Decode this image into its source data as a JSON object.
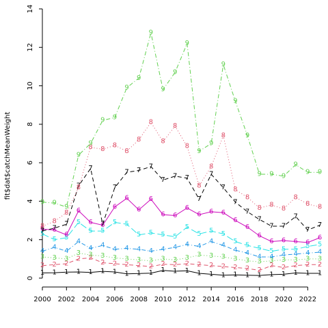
{
  "chart_data": {
    "type": "line",
    "title": "",
    "xlabel": "",
    "ylabel": "fit$dat$catchMeanWeight",
    "xlim": [
      2000,
      2023
    ],
    "ylim": [
      0,
      14
    ],
    "x_ticks": [
      2000,
      2002,
      2004,
      2006,
      2008,
      2010,
      2012,
      2014,
      2016,
      2018,
      2020,
      2022
    ],
    "y_ticks": [
      0,
      2,
      4,
      6,
      8,
      10,
      12,
      14
    ],
    "x": [
      2000,
      2001,
      2002,
      2003,
      2004,
      2005,
      2006,
      2007,
      2008,
      2009,
      2010,
      2011,
      2012,
      2013,
      2014,
      2015,
      2016,
      2017,
      2018,
      2019,
      2020,
      2021,
      2022,
      2023
    ],
    "grid": false,
    "legend": "none",
    "series": [
      {
        "label": "1",
        "color": "#000000",
        "dash": "solid",
        "values": [
          0.27,
          0.28,
          0.31,
          0.32,
          0.3,
          0.35,
          0.32,
          0.22,
          0.24,
          0.26,
          0.4,
          0.36,
          0.38,
          0.25,
          0.2,
          0.15,
          0.17,
          0.15,
          0.14,
          0.18,
          0.2,
          0.27,
          0.25,
          0.25
        ]
      },
      {
        "label": "2",
        "color": "#df536b",
        "dash": "6,4",
        "values": [
          0.65,
          0.7,
          0.75,
          1.0,
          1.05,
          0.8,
          0.75,
          0.7,
          0.65,
          0.6,
          0.72,
          0.7,
          0.75,
          0.7,
          0.65,
          0.6,
          0.55,
          0.5,
          0.4,
          0.65,
          0.55,
          0.65,
          0.7,
          0.7
        ]
      },
      {
        "label": "3",
        "color": "#61d04f",
        "dash": "1,3",
        "values": [
          1.1,
          1.05,
          1.0,
          1.3,
          1.2,
          1.15,
          1.05,
          1.0,
          0.95,
          0.9,
          1.0,
          0.95,
          1.05,
          1.2,
          1.15,
          1.1,
          1.0,
          0.9,
          0.85,
          0.9,
          0.95,
          0.95,
          1.0,
          1.0
        ]
      },
      {
        "label": "4",
        "color": "#2297e6",
        "dash": "6,3,1,3",
        "values": [
          1.4,
          1.6,
          1.4,
          1.9,
          1.55,
          1.7,
          1.5,
          1.55,
          1.5,
          1.4,
          1.5,
          1.6,
          1.75,
          1.65,
          1.9,
          1.7,
          1.45,
          1.3,
          1.1,
          1.1,
          1.2,
          1.25,
          1.3,
          1.35
        ]
      },
      {
        "label": "5",
        "color": "#28e2e5",
        "dash": "10,4",
        "values": [
          2.3,
          2.0,
          2.1,
          2.9,
          2.45,
          2.45,
          2.9,
          2.8,
          2.25,
          2.35,
          2.25,
          2.15,
          2.65,
          2.3,
          2.45,
          2.3,
          1.9,
          1.7,
          1.55,
          1.4,
          1.5,
          1.5,
          1.65,
          1.75
        ]
      },
      {
        "label": "6",
        "color": "#cd0bbc",
        "dash": "solid",
        "values": [
          2.55,
          2.5,
          2.25,
          3.5,
          2.9,
          2.75,
          3.7,
          4.15,
          3.55,
          4.1,
          3.3,
          3.25,
          3.65,
          3.3,
          3.45,
          3.4,
          3.0,
          2.65,
          2.2,
          1.9,
          1.95,
          1.9,
          1.85,
          2.1
        ]
      },
      {
        "label": "7",
        "color": "#000000",
        "dash": "6,4",
        "values": [
          2.45,
          2.6,
          2.8,
          4.8,
          5.7,
          2.8,
          4.7,
          5.5,
          5.6,
          5.8,
          5.1,
          5.3,
          5.2,
          4.1,
          5.4,
          4.7,
          3.95,
          3.45,
          3.05,
          2.7,
          2.7,
          3.2,
          2.5,
          2.75
        ]
      },
      {
        "label": "8",
        "color": "#df536b",
        "dash": "1,3",
        "values": [
          2.7,
          2.95,
          3.4,
          4.7,
          6.8,
          6.7,
          6.9,
          6.6,
          7.2,
          8.1,
          7.1,
          7.9,
          6.85,
          4.8,
          5.8,
          7.4,
          4.6,
          4.2,
          3.65,
          3.8,
          3.6,
          4.2,
          3.85,
          3.7
        ]
      },
      {
        "label": "9",
        "color": "#61d04f",
        "dash": "6,3,1,3",
        "values": [
          3.95,
          3.9,
          3.7,
          6.4,
          7.0,
          8.2,
          8.35,
          9.9,
          10.4,
          12.75,
          9.8,
          10.7,
          12.2,
          6.6,
          7.0,
          11.1,
          9.2,
          7.4,
          5.4,
          5.4,
          5.3,
          5.9,
          5.5,
          5.5
        ]
      }
    ]
  }
}
